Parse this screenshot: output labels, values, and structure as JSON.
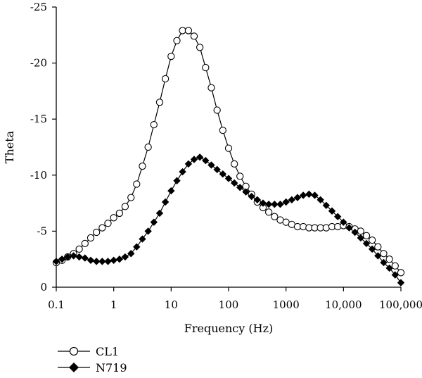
{
  "chart_data": {
    "type": "line",
    "title": "",
    "xlabel": "Frequency (Hz)",
    "ylabel": "Theta",
    "x_scale": "log",
    "xlim": [
      0.1,
      100000
    ],
    "ylim": [
      0,
      -25
    ],
    "y_inverted": true,
    "grid": false,
    "legend_position": "bottom-left",
    "x_ticks": [
      {
        "value": 0.1,
        "label": "0.1"
      },
      {
        "value": 1,
        "label": "1"
      },
      {
        "value": 10,
        "label": "10"
      },
      {
        "value": 100,
        "label": "100"
      },
      {
        "value": 1000,
        "label": "1000"
      },
      {
        "value": 10000,
        "label": "10,000"
      },
      {
        "value": 100000,
        "label": "100,000"
      }
    ],
    "y_ticks": [
      {
        "value": -25,
        "label": "-25"
      },
      {
        "value": -20,
        "label": "-20"
      },
      {
        "value": -15,
        "label": "-15"
      },
      {
        "value": -10,
        "label": "-10"
      },
      {
        "value": -5,
        "label": "-5"
      },
      {
        "value": 0,
        "label": "0"
      }
    ],
    "series": [
      {
        "name": "CL1",
        "marker": "open-circle",
        "color": "#000000",
        "points": [
          [
            0.1,
            -2.2
          ],
          [
            0.126,
            -2.4
          ],
          [
            0.158,
            -2.7
          ],
          [
            0.2,
            -3.0
          ],
          [
            0.251,
            -3.4
          ],
          [
            0.316,
            -3.9
          ],
          [
            0.398,
            -4.4
          ],
          [
            0.501,
            -4.9
          ],
          [
            0.631,
            -5.3
          ],
          [
            0.794,
            -5.7
          ],
          [
            1.0,
            -6.2
          ],
          [
            1.26,
            -6.6
          ],
          [
            1.58,
            -7.2
          ],
          [
            2.0,
            -8.0
          ],
          [
            2.51,
            -9.2
          ],
          [
            3.16,
            -10.8
          ],
          [
            3.98,
            -12.5
          ],
          [
            5.01,
            -14.5
          ],
          [
            6.31,
            -16.5
          ],
          [
            7.94,
            -18.6
          ],
          [
            10.0,
            -20.6
          ],
          [
            12.6,
            -22.0
          ],
          [
            15.8,
            -22.9
          ],
          [
            20.0,
            -22.9
          ],
          [
            25.1,
            -22.4
          ],
          [
            31.6,
            -21.4
          ],
          [
            39.8,
            -19.6
          ],
          [
            50.1,
            -17.8
          ],
          [
            63.1,
            -15.8
          ],
          [
            79.4,
            -14.0
          ],
          [
            100,
            -12.4
          ],
          [
            126,
            -11.0
          ],
          [
            158,
            -9.9
          ],
          [
            200,
            -9.0
          ],
          [
            251,
            -8.3
          ],
          [
            316,
            -7.6
          ],
          [
            398,
            -7.1
          ],
          [
            501,
            -6.7
          ],
          [
            631,
            -6.3
          ],
          [
            794,
            -6.0
          ],
          [
            1000,
            -5.8
          ],
          [
            1259,
            -5.6
          ],
          [
            1585,
            -5.4
          ],
          [
            1995,
            -5.4
          ],
          [
            2512,
            -5.3
          ],
          [
            3162,
            -5.3
          ],
          [
            3981,
            -5.3
          ],
          [
            5012,
            -5.3
          ],
          [
            6310,
            -5.4
          ],
          [
            7943,
            -5.4
          ],
          [
            10000,
            -5.5
          ],
          [
            12589,
            -5.4
          ],
          [
            15849,
            -5.2
          ],
          [
            19953,
            -5.0
          ],
          [
            25119,
            -4.6
          ],
          [
            31623,
            -4.2
          ],
          [
            39811,
            -3.6
          ],
          [
            50119,
            -3.0
          ],
          [
            63096,
            -2.5
          ],
          [
            79433,
            -1.9
          ],
          [
            100000,
            -1.3
          ]
        ]
      },
      {
        "name": "N719",
        "marker": "filled-diamond",
        "color": "#000000",
        "points": [
          [
            0.1,
            -2.3
          ],
          [
            0.126,
            -2.5
          ],
          [
            0.158,
            -2.7
          ],
          [
            0.2,
            -2.8
          ],
          [
            0.251,
            -2.7
          ],
          [
            0.316,
            -2.6
          ],
          [
            0.398,
            -2.4
          ],
          [
            0.501,
            -2.3
          ],
          [
            0.631,
            -2.3
          ],
          [
            0.794,
            -2.3
          ],
          [
            1.0,
            -2.4
          ],
          [
            1.26,
            -2.5
          ],
          [
            1.58,
            -2.7
          ],
          [
            2.0,
            -3.0
          ],
          [
            2.51,
            -3.6
          ],
          [
            3.16,
            -4.3
          ],
          [
            3.98,
            -5.0
          ],
          [
            5.01,
            -5.8
          ],
          [
            6.31,
            -6.6
          ],
          [
            7.94,
            -7.6
          ],
          [
            10.0,
            -8.6
          ],
          [
            12.6,
            -9.5
          ],
          [
            15.8,
            -10.3
          ],
          [
            20.0,
            -11.0
          ],
          [
            25.1,
            -11.4
          ],
          [
            31.6,
            -11.6
          ],
          [
            39.8,
            -11.3
          ],
          [
            50.1,
            -10.9
          ],
          [
            63.1,
            -10.5
          ],
          [
            79.4,
            -10.1
          ],
          [
            100,
            -9.7
          ],
          [
            126,
            -9.3
          ],
          [
            158,
            -8.9
          ],
          [
            200,
            -8.5
          ],
          [
            251,
            -8.1
          ],
          [
            316,
            -7.8
          ],
          [
            398,
            -7.5
          ],
          [
            501,
            -7.4
          ],
          [
            631,
            -7.4
          ],
          [
            794,
            -7.4
          ],
          [
            1000,
            -7.6
          ],
          [
            1259,
            -7.8
          ],
          [
            1585,
            -8.0
          ],
          [
            1995,
            -8.2
          ],
          [
            2512,
            -8.3
          ],
          [
            3162,
            -8.2
          ],
          [
            3981,
            -7.8
          ],
          [
            5012,
            -7.3
          ],
          [
            6310,
            -6.8
          ],
          [
            7943,
            -6.3
          ],
          [
            10000,
            -5.8
          ],
          [
            12589,
            -5.3
          ],
          [
            15849,
            -4.9
          ],
          [
            19953,
            -4.4
          ],
          [
            25119,
            -3.9
          ],
          [
            31623,
            -3.4
          ],
          [
            39811,
            -2.8
          ],
          [
            50119,
            -2.2
          ],
          [
            63096,
            -1.7
          ],
          [
            79433,
            -1.1
          ],
          [
            100000,
            -0.4
          ]
        ]
      }
    ]
  }
}
